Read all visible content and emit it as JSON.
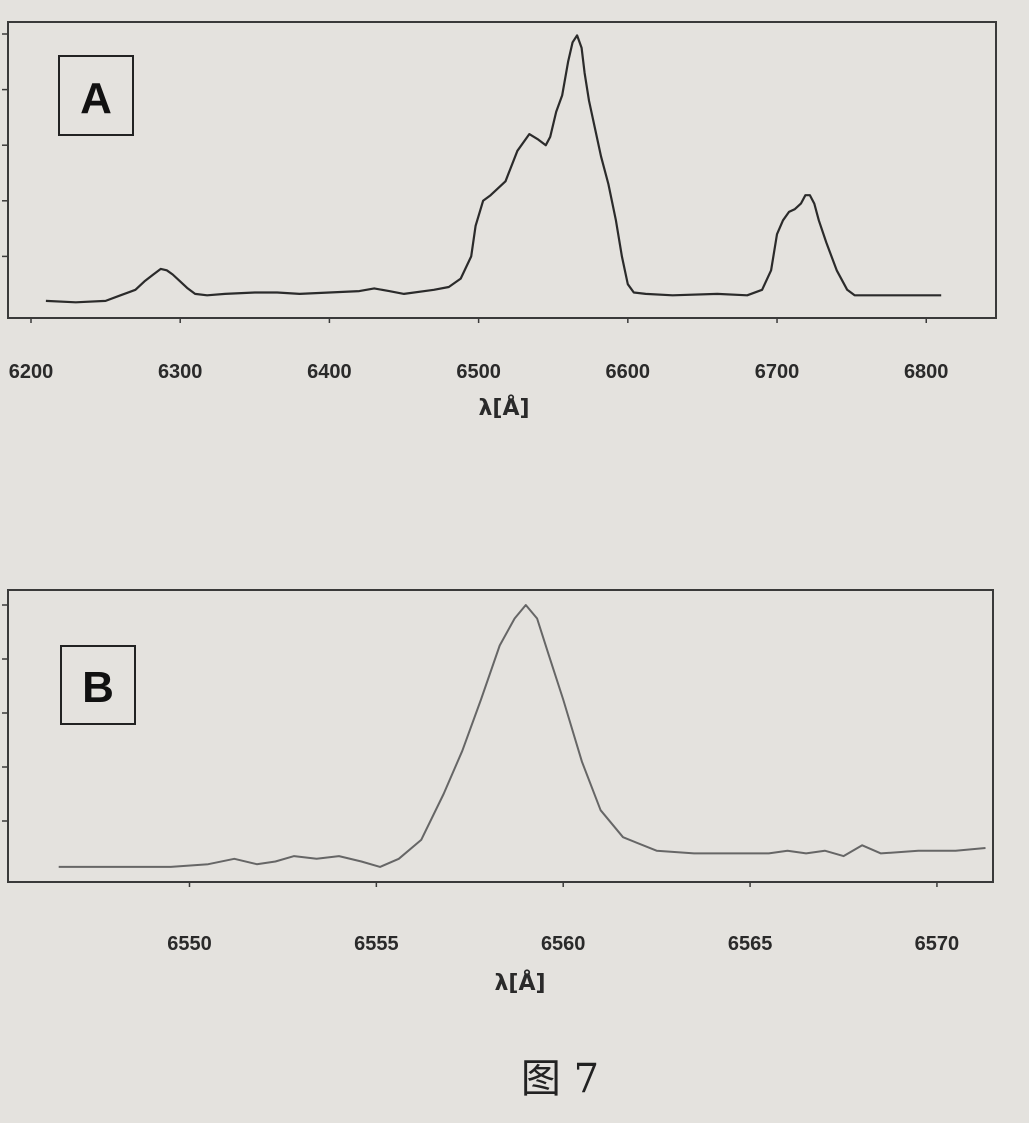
{
  "colors": {
    "paper": "#e4e2de",
    "frame": "#3a3a3a",
    "trace_a": "#2b2b2b",
    "trace_b": "#666666",
    "text": "#2a2a2a"
  },
  "caption": "图 7",
  "chart_data": [
    {
      "type": "line",
      "panel_label": "A",
      "xlabel": "λ[Å]",
      "xlim": [
        6200,
        6830
      ],
      "x_ticks": [
        6200,
        6300,
        6400,
        6500,
        6600,
        6700,
        6800
      ],
      "x_tick_labels": [
        "6200",
        "6300",
        "6400",
        "6500",
        "6600",
        "6700",
        "6800"
      ],
      "ylim": [
        0,
        1.0
      ],
      "y_tick_labels_shown": false,
      "grid": false,
      "series": [
        {
          "x": [
            6210,
            6230,
            6250,
            6260,
            6270,
            6276,
            6282,
            6287,
            6291,
            6295,
            6300,
            6305,
            6310,
            6318,
            6330,
            6350,
            6365,
            6380,
            6400,
            6420,
            6430,
            6440,
            6450,
            6470,
            6480,
            6488,
            6495,
            6498,
            6503,
            6508,
            6512,
            6518,
            6526,
            6534,
            6540,
            6545,
            6548,
            6552,
            6556,
            6560,
            6563,
            6566,
            6569,
            6571,
            6574,
            6578,
            6582,
            6587,
            6592,
            6596,
            6600,
            6604,
            6612,
            6630,
            6660,
            6680,
            6690,
            6696,
            6700,
            6704,
            6708,
            6712,
            6716,
            6719,
            6722,
            6725,
            6728,
            6733,
            6740,
            6747,
            6752,
            6760,
            6780,
            6810
          ],
          "y": [
            0.04,
            0.035,
            0.04,
            0.06,
            0.08,
            0.11,
            0.135,
            0.155,
            0.15,
            0.135,
            0.11,
            0.085,
            0.065,
            0.06,
            0.065,
            0.07,
            0.07,
            0.065,
            0.07,
            0.075,
            0.085,
            0.075,
            0.065,
            0.08,
            0.09,
            0.12,
            0.2,
            0.31,
            0.4,
            0.42,
            0.44,
            0.47,
            0.58,
            0.64,
            0.62,
            0.6,
            0.63,
            0.72,
            0.78,
            0.9,
            0.97,
            0.995,
            0.95,
            0.86,
            0.76,
            0.66,
            0.56,
            0.46,
            0.33,
            0.2,
            0.1,
            0.07,
            0.065,
            0.06,
            0.065,
            0.06,
            0.08,
            0.15,
            0.28,
            0.33,
            0.36,
            0.37,
            0.39,
            0.42,
            0.42,
            0.39,
            0.33,
            0.25,
            0.15,
            0.08,
            0.06,
            0.06,
            0.06,
            0.06
          ]
        }
      ]
    },
    {
      "type": "line",
      "panel_label": "B",
      "xlabel": "λ[Å]",
      "xlim": [
        6546,
        6571.5
      ],
      "x_ticks": [
        6550,
        6555,
        6560,
        6565,
        6570
      ],
      "x_tick_labels": [
        "6550",
        "6555",
        "6560",
        "6565",
        "6570"
      ],
      "ylim": [
        0,
        1.0
      ],
      "y_tick_labels_shown": false,
      "grid": false,
      "series": [
        {
          "x": [
            6546.5,
            6548,
            6549.5,
            6550.5,
            6551.2,
            6551.8,
            6552.3,
            6552.8,
            6553.4,
            6554,
            6554.6,
            6555.1,
            6555.6,
            6556.2,
            6556.8,
            6557.3,
            6557.8,
            6558.3,
            6558.7,
            6559,
            6559.3,
            6559.6,
            6560,
            6560.5,
            6561,
            6561.6,
            6562.5,
            6563.5,
            6564.5,
            6565.5,
            6566,
            6566.5,
            6567,
            6567.5,
            6568,
            6568.5,
            6569.5,
            6570.5,
            6571.3
          ],
          "y": [
            0.03,
            0.03,
            0.03,
            0.04,
            0.06,
            0.04,
            0.05,
            0.07,
            0.06,
            0.07,
            0.05,
            0.03,
            0.06,
            0.13,
            0.3,
            0.46,
            0.65,
            0.85,
            0.95,
            1.0,
            0.95,
            0.82,
            0.65,
            0.42,
            0.24,
            0.14,
            0.09,
            0.08,
            0.08,
            0.08,
            0.09,
            0.08,
            0.09,
            0.07,
            0.11,
            0.08,
            0.09,
            0.09,
            0.1
          ]
        }
      ]
    }
  ]
}
